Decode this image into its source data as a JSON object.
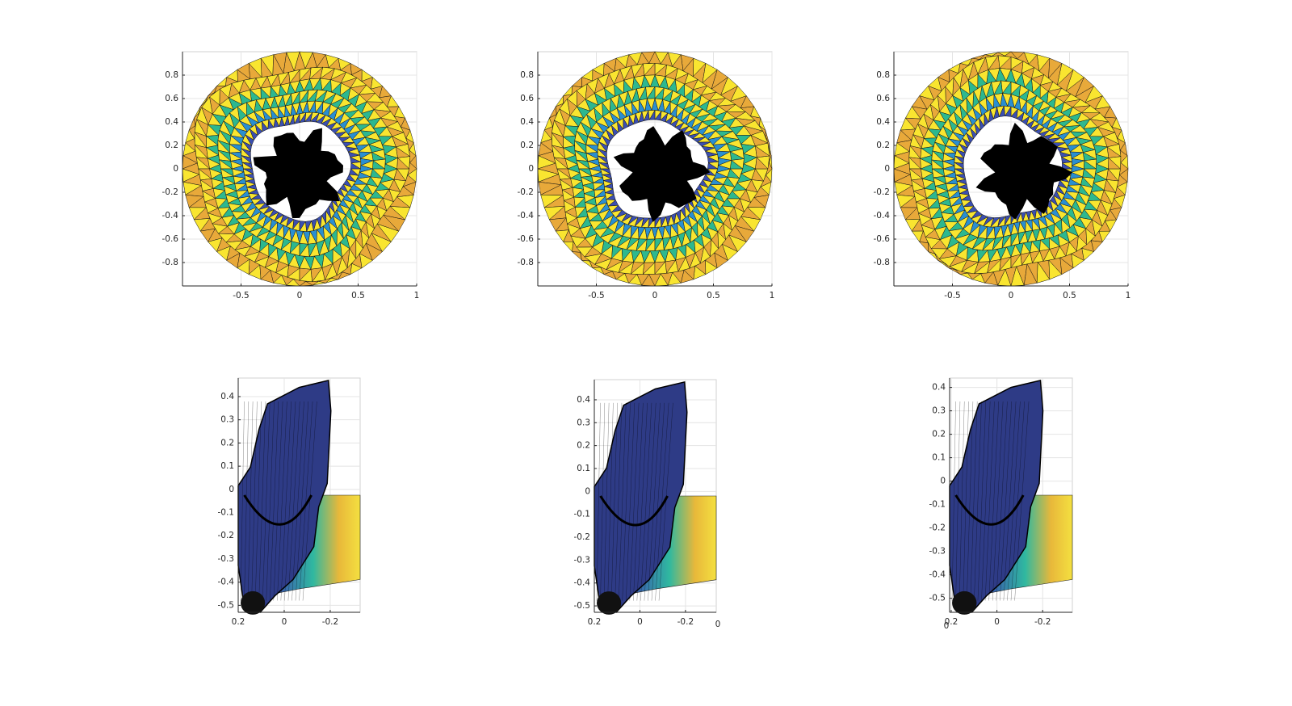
{
  "chart_data": [
    {
      "type": "trimesh",
      "xlim": [
        -1,
        1
      ],
      "ylim": [
        -1,
        1
      ],
      "xticks": [
        -0.5,
        0,
        0.5,
        1
      ],
      "yticks": [
        -0.8,
        -0.6,
        -0.4,
        -0.2,
        0,
        0.2,
        0.4,
        0.6,
        0.8
      ],
      "grid": true
    },
    {
      "type": "trimesh",
      "xlim": [
        -1,
        1
      ],
      "ylim": [
        -1,
        1
      ],
      "xticks": [
        -0.5,
        0,
        0.5,
        1
      ],
      "yticks": [
        -0.8,
        -0.6,
        -0.4,
        -0.2,
        0,
        0.2,
        0.4,
        0.6,
        0.8
      ],
      "grid": true
    },
    {
      "type": "trimesh",
      "xlim": [
        -1,
        1
      ],
      "ylim": [
        -1,
        1
      ],
      "xticks": [
        -0.5,
        0,
        0.5,
        1
      ],
      "yticks": [
        -0.8,
        -0.6,
        -0.4,
        -0.2,
        0,
        0.2,
        0.4,
        0.6,
        0.8
      ],
      "grid": true
    },
    {
      "type": "surface",
      "xlim": [
        0.2,
        -0.33
      ],
      "ylim": [
        -0.53,
        0.48
      ],
      "xticks": [
        0.2,
        0,
        -0.2
      ],
      "yticks": [
        -0.5,
        -0.4,
        -0.3,
        -0.2,
        -0.1,
        0,
        0.1,
        0.2,
        0.3,
        0.4
      ],
      "grid": true
    },
    {
      "type": "surface",
      "xlim": [
        0.2,
        -0.335
      ],
      "ylim": [
        -0.528,
        0.488
      ],
      "xticks": [
        0.2,
        0,
        -0.2
      ],
      "yticks": [
        -0.5,
        -0.4,
        -0.3,
        -0.2,
        -0.1,
        0,
        0.1,
        0.2,
        0.3,
        0.4
      ],
      "zticks": [
        0
      ],
      "grid": true
    },
    {
      "type": "surface",
      "xlim": [
        0.207,
        -0.33
      ],
      "ylim": [
        -0.56,
        0.44
      ],
      "xticks": [
        0.2,
        0,
        -0.2
      ],
      "yticks": [
        -0.5,
        -0.4,
        -0.3,
        -0.2,
        -0.1,
        0,
        0.1,
        0.2,
        0.3,
        0.4
      ],
      "zticks": [
        0
      ],
      "grid": true
    }
  ]
}
